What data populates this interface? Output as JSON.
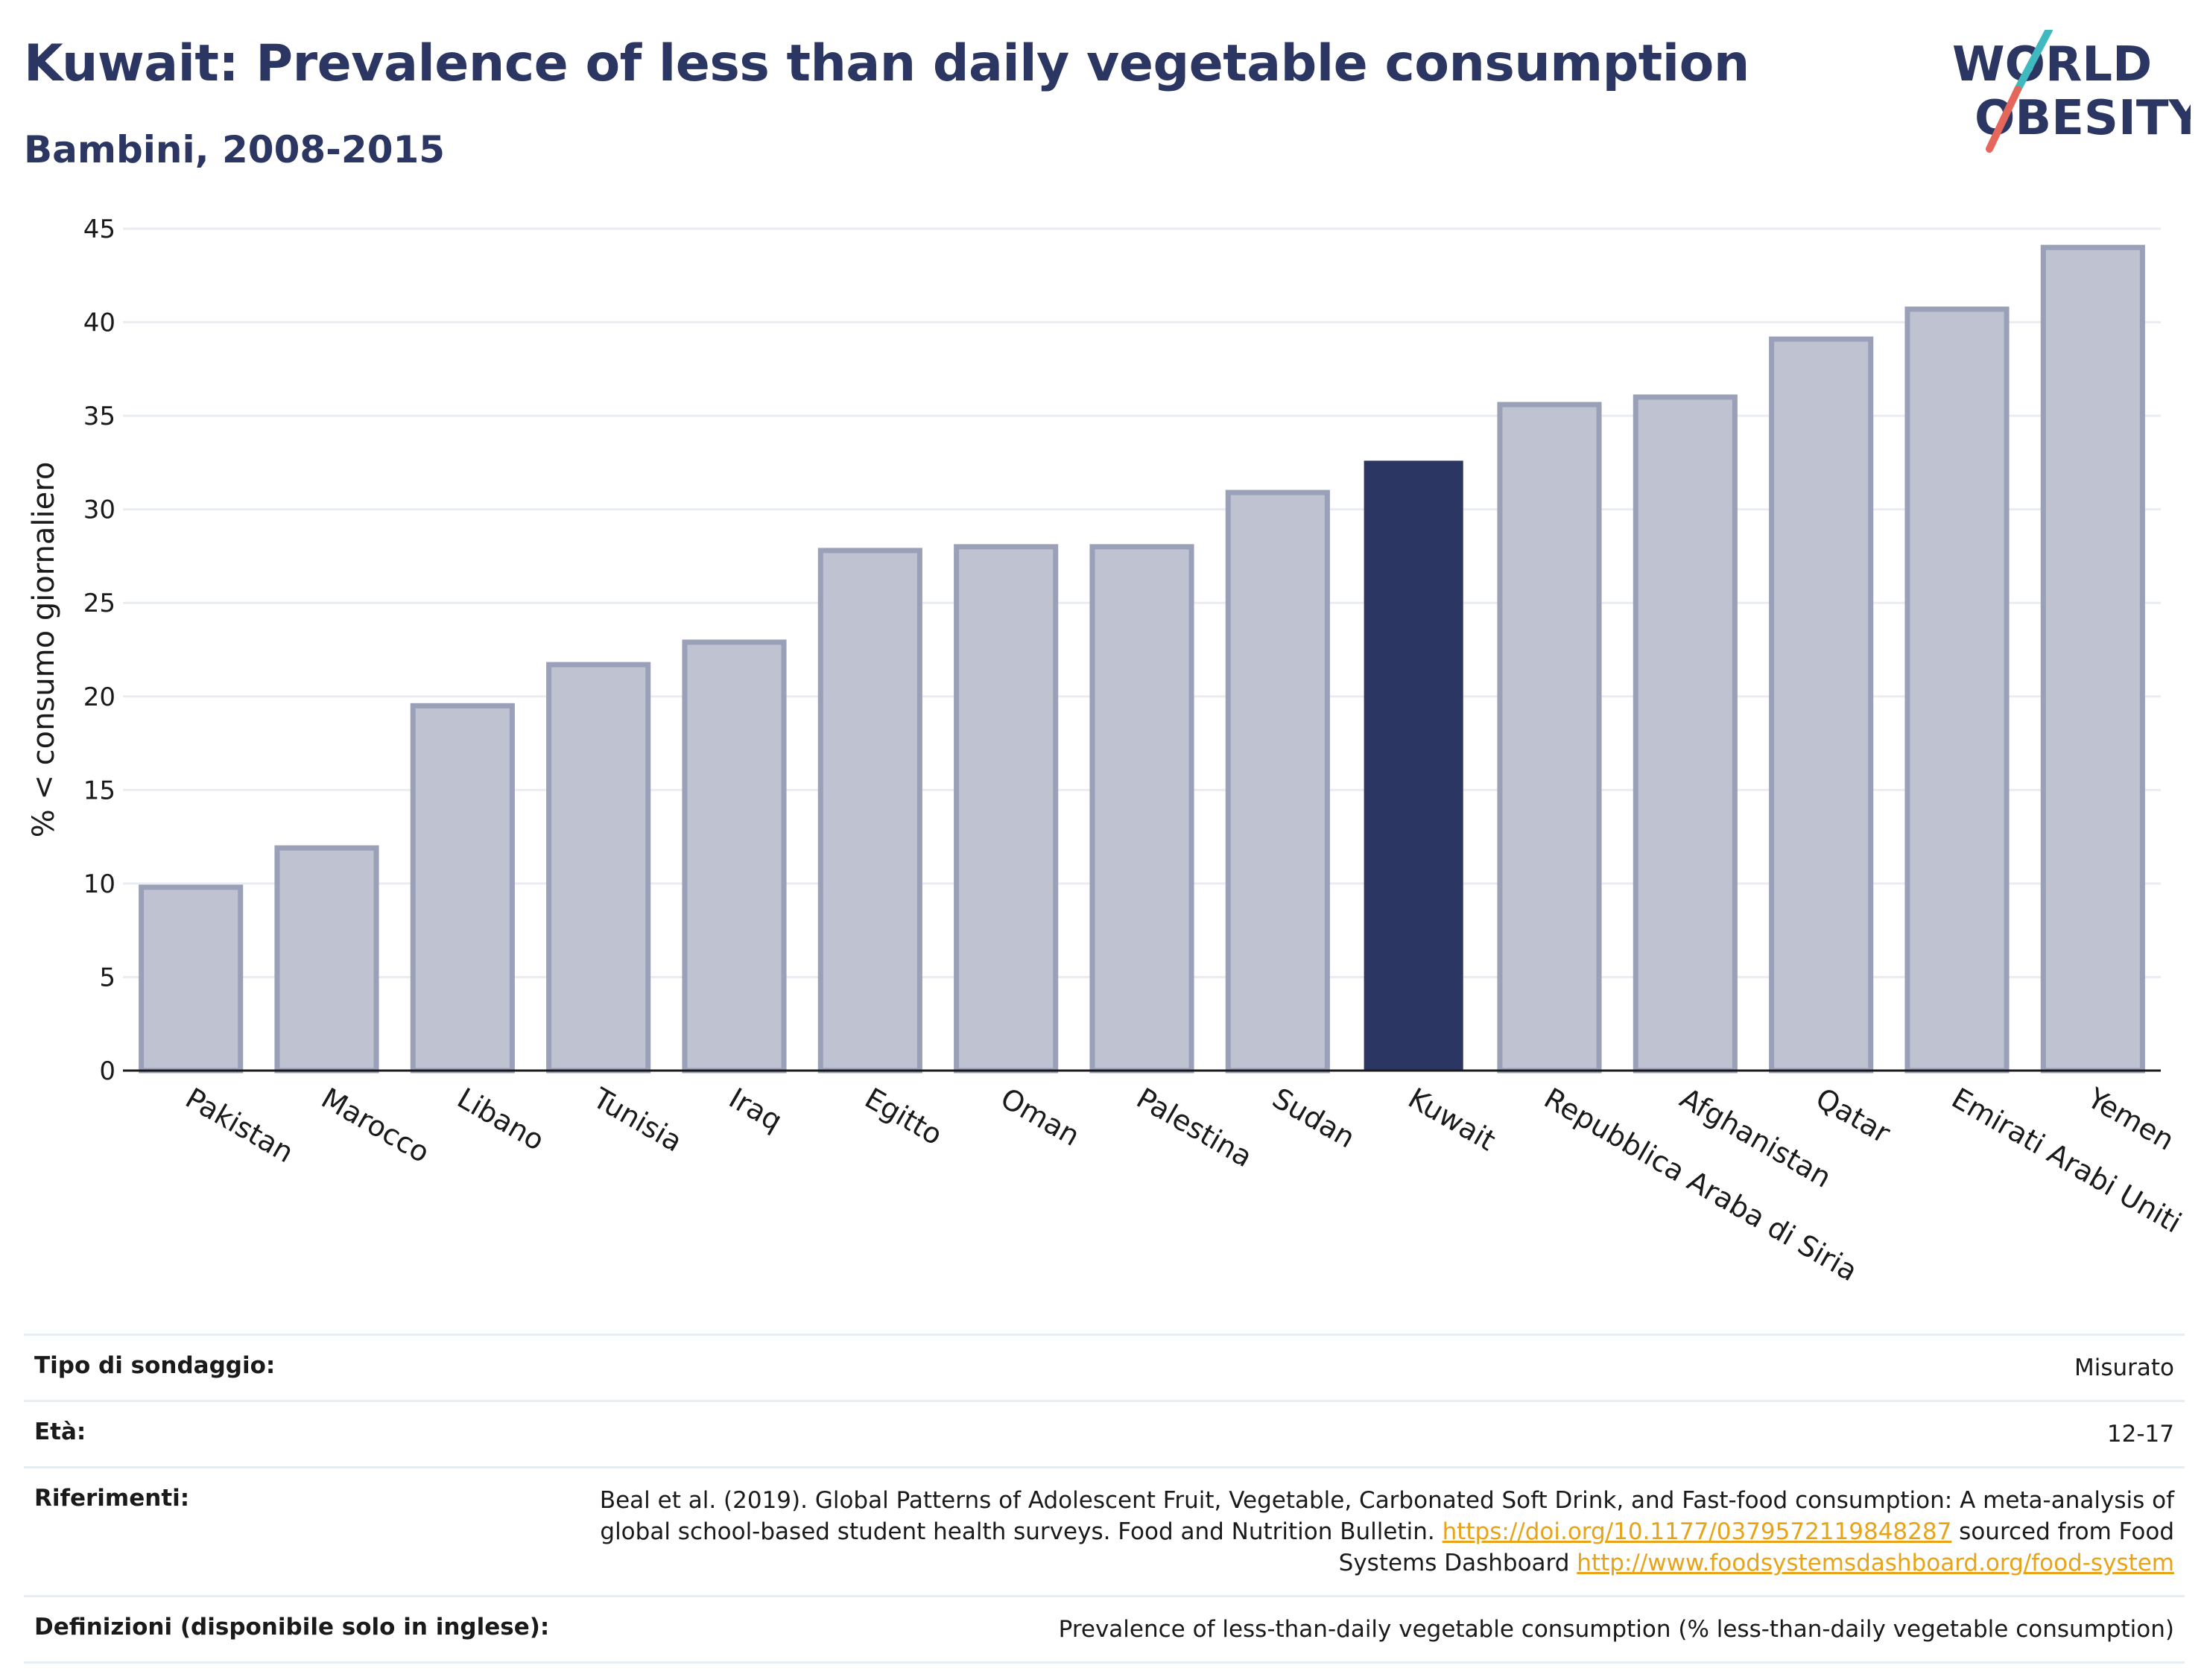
{
  "header": {
    "title": "Kuwait: Prevalence of less than daily vegetable consumption",
    "subtitle": "Bambini, 2008-2015"
  },
  "logo": {
    "line1": "WORLD",
    "line2": "OBESITY"
  },
  "colors": {
    "highlight": "#2b3663",
    "bar": "#bfc3d1",
    "bar_edge": "#9aa0b8",
    "title": "#2b3663",
    "link": "#e8a317",
    "logo_slash_top": "#3fb8c0",
    "logo_slash_bottom": "#e5665a"
  },
  "chart_data": {
    "type": "bar",
    "ylabel": "% < consumo giornaliero",
    "ylim": [
      0,
      45
    ],
    "yticks": [
      0,
      5,
      10,
      15,
      20,
      25,
      30,
      35,
      40,
      45
    ],
    "grid": true,
    "highlight": "Kuwait",
    "categories": [
      "Pakistan",
      "Marocco",
      "Libano",
      "Tunisia",
      "Iraq",
      "Egitto",
      "Oman",
      "Palestina",
      "Sudan",
      "Kuwait",
      "Repubblica Araba di Siria",
      "Afghanistan",
      "Qatar",
      "Emirati Arabi Uniti",
      "Yemen"
    ],
    "values": [
      9.8,
      11.9,
      19.5,
      21.7,
      22.9,
      27.8,
      28.0,
      28.0,
      30.9,
      32.6,
      35.6,
      36.0,
      39.1,
      40.7,
      44.0
    ]
  },
  "meta": {
    "survey_label": "Tipo di sondaggio:",
    "survey_value": "Misurato",
    "age_label": "Età:",
    "age_value": "12-17",
    "refs_label": "Riferimenti:",
    "refs_text1": "Beal et al. (2019). Global Patterns of Adolescent Fruit, Vegetable, Carbonated Soft Drink, and Fast-food consumption: A meta-analysis of global school-based student health surveys. Food and Nutrition Bulletin. ",
    "refs_link1": "https://doi.org/10.1177/0379572119848287",
    "refs_text2": " sourced from Food Systems Dashboard ",
    "refs_link2": "http://www.foodsystemsdashboard.org/food-system",
    "def_label": "Definizioni (disponibile solo in inglese):",
    "def_value": "Prevalence of less-than-daily vegetable consumption (% less-than-daily vegetable consumption)"
  }
}
